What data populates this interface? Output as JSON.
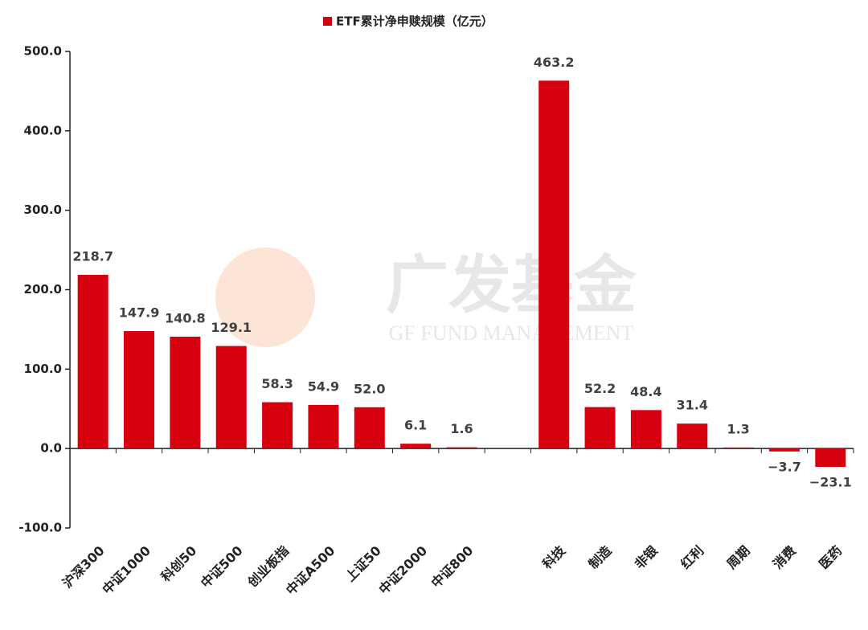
{
  "chart_data": {
    "type": "bar",
    "categories": [
      "沪深300",
      "中证1000",
      "科创50",
      "中证500",
      "创业板指",
      "中证A500",
      "上证50",
      "中证2000",
      "中证800",
      null,
      "科技",
      "制造",
      "非银",
      "红利",
      "周期",
      "消费",
      "医药"
    ],
    "series": [
      {
        "name": "ETF累计净申赎规模（亿元）",
        "color": "#d7000f",
        "values": [
          218.7,
          147.9,
          140.8,
          129.1,
          58.3,
          54.9,
          52.0,
          6.1,
          1.6,
          null,
          463.2,
          52.2,
          48.4,
          31.4,
          1.3,
          -3.7,
          -23.1
        ],
        "value_labels": [
          "218.7",
          "147.9",
          "140.8",
          "129.1",
          "58.3",
          "54.9",
          "52.0",
          "6.1",
          "1.6",
          null,
          "463.2",
          "52.2",
          "48.4",
          "31.4",
          "1.3",
          "−3.7",
          "−23.1"
        ]
      }
    ],
    "ylim": [
      -100,
      500
    ],
    "yticks": [
      {
        "value": -100,
        "label": "-100.0"
      },
      {
        "value": 0,
        "label": "0.0"
      },
      {
        "value": 100,
        "label": "100.0"
      },
      {
        "value": 200,
        "label": "200.0"
      },
      {
        "value": 300,
        "label": "300.0"
      },
      {
        "value": 400,
        "label": "400.0"
      },
      {
        "value": 500,
        "label": "500.0"
      }
    ],
    "watermark": [
      "广发基金",
      "GF FUND MANAGEMENT"
    ]
  }
}
